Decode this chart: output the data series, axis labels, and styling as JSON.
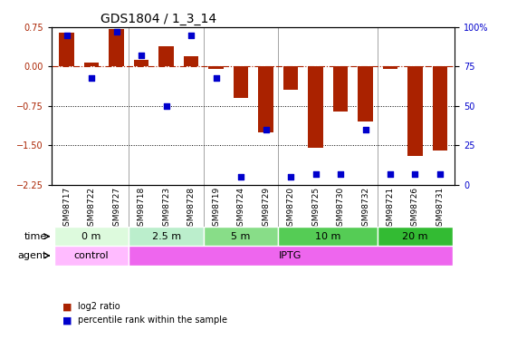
{
  "title": "GDS1804 / 1_3_14",
  "samples": [
    "GSM98717",
    "GSM98722",
    "GSM98727",
    "GSM98718",
    "GSM98723",
    "GSM98728",
    "GSM98719",
    "GSM98724",
    "GSM98729",
    "GSM98720",
    "GSM98725",
    "GSM98730",
    "GSM98732",
    "GSM98721",
    "GSM98726",
    "GSM98731"
  ],
  "log2_ratio": [
    0.65,
    0.07,
    0.72,
    0.12,
    0.38,
    0.2,
    -0.05,
    -0.6,
    -1.25,
    -0.45,
    -1.55,
    -0.85,
    -1.05,
    -0.05,
    -1.7,
    -1.6
  ],
  "pct_rank": [
    95,
    68,
    97,
    82,
    50,
    95,
    68,
    5,
    35,
    5,
    7,
    7,
    35,
    7,
    7,
    7
  ],
  "time_groups": [
    {
      "label": "0 m",
      "start": 0,
      "end": 3,
      "color": "#ccffcc"
    },
    {
      "label": "2.5 m",
      "start": 3,
      "end": 6,
      "color": "#99ee99"
    },
    {
      "label": "5 m",
      "start": 6,
      "end": 9,
      "color": "#66dd66"
    },
    {
      "label": "10 m",
      "start": 9,
      "end": 13,
      "color": "#44cc44"
    },
    {
      "label": "20 m",
      "start": 13,
      "end": 16,
      "color": "#22bb22"
    }
  ],
  "agent_groups": [
    {
      "label": "control",
      "start": 0,
      "end": 3,
      "color": "#ffaaff"
    },
    {
      "label": "IPTG",
      "start": 3,
      "end": 16,
      "color": "#ee55ee"
    }
  ],
  "bar_color": "#aa2200",
  "dot_color": "#0000cc",
  "ylim": [
    -2.25,
    0.75
  ],
  "yticks_left": [
    0.75,
    0.0,
    -0.75,
    -1.5,
    -2.25
  ],
  "yticks_right": [
    100,
    75,
    50,
    25,
    0
  ],
  "hline_y": 0.0,
  "dotted_lines": [
    -0.75,
    -1.5
  ],
  "background_color": "#ffffff"
}
